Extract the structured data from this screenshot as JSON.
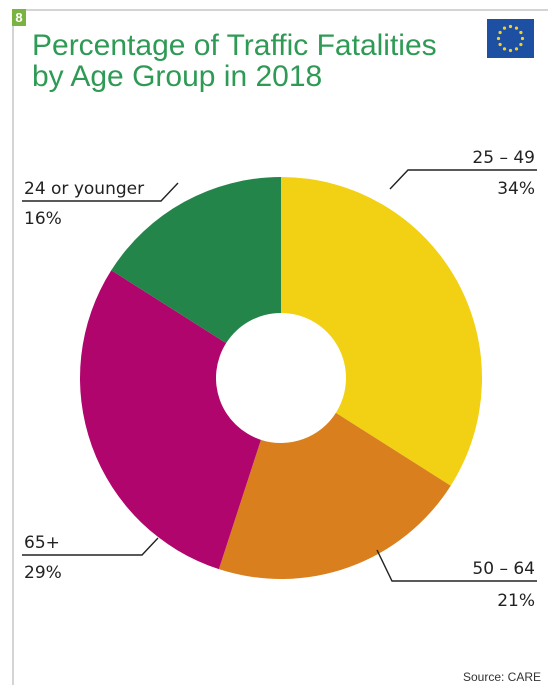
{
  "figure": {
    "number": "8",
    "title_lines": [
      "Percentage of Traffic Fatalities",
      "by Age Group in 2018"
    ],
    "source": "Source: CARE",
    "emblem_icon": "eu-flag-icon",
    "colors": {
      "title": "#2e9a55",
      "badge": "#7bb342",
      "flag_blue": "#1d4fa3",
      "flag_star": "#f5d11a"
    }
  },
  "chart_data": {
    "type": "pie",
    "style": "donut",
    "title": "Percentage of Traffic Fatalities by Age Group in 2018",
    "unit": "%",
    "slices": [
      {
        "label": "25 – 49",
        "value": 34,
        "value_label": "34%",
        "color": "#f2d013"
      },
      {
        "label": "50 – 64",
        "value": 21,
        "value_label": "21%",
        "color": "#d97f1e"
      },
      {
        "label": "65+",
        "value": 29,
        "value_label": "29%",
        "color": "#b0056d"
      },
      {
        "label": "24 or younger",
        "value": 16,
        "value_label": "16%",
        "color": "#24854a"
      }
    ]
  }
}
